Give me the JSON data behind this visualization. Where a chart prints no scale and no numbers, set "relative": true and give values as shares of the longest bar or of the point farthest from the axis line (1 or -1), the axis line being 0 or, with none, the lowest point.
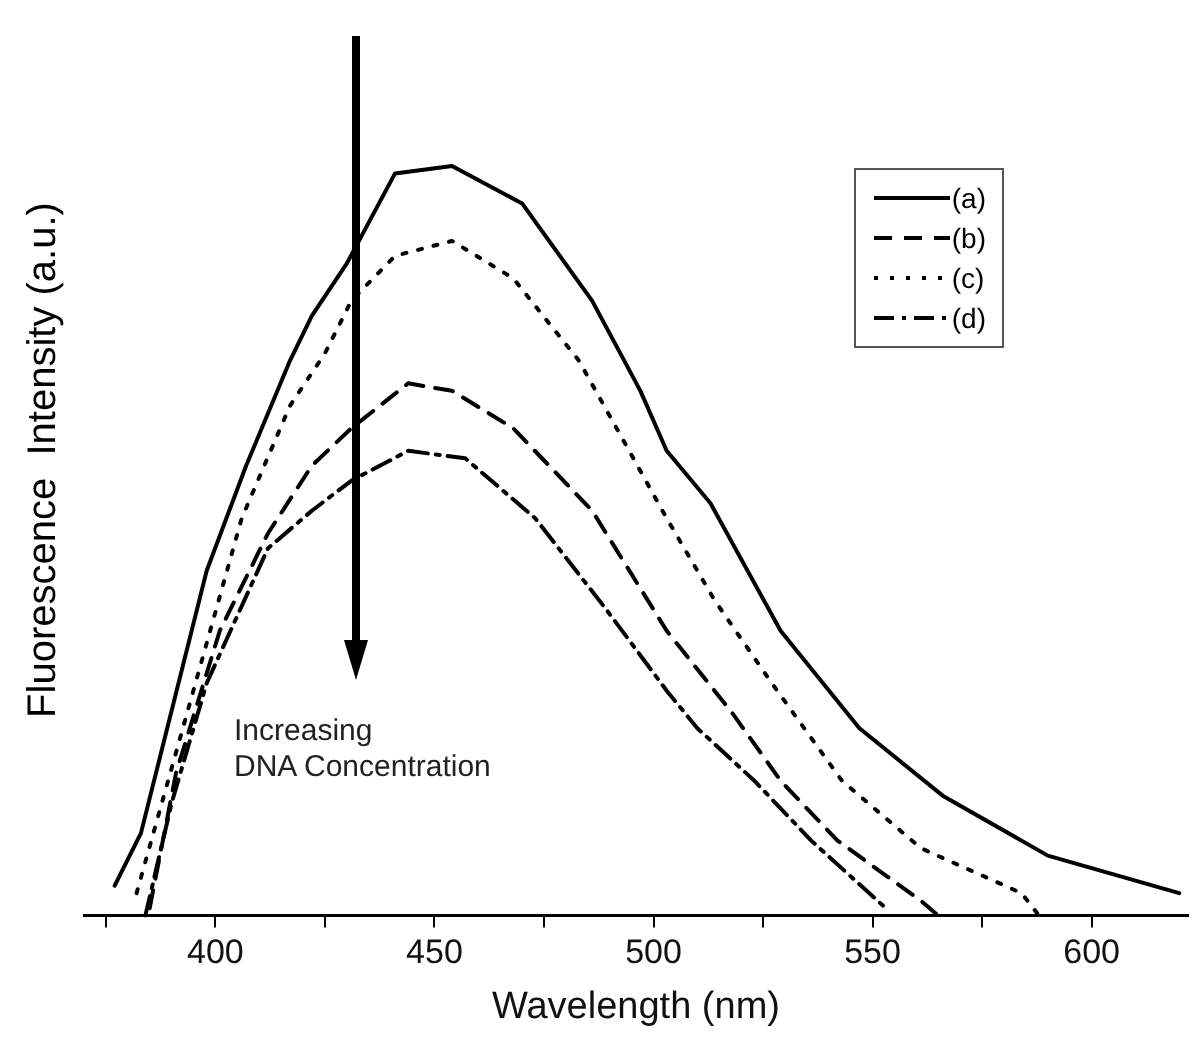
{
  "chart_data": {
    "type": "line",
    "relative": true,
    "xlabel": "Wavelength (nm)",
    "ylabel": "Fluorescence  Intensity (a.u.)",
    "xlim": [
      370,
      622
    ],
    "xticks": [
      {
        "value": 375,
        "label": null
      },
      400,
      {
        "value": 425,
        "label": null
      },
      450,
      {
        "value": 475,
        "label": null
      },
      500,
      {
        "value": 525,
        "label": null
      },
      550,
      {
        "value": 575,
        "label": null
      },
      600
    ],
    "legend": "top right",
    "grid": false,
    "marker": "none",
    "annotations": [
      "Increasing\nDNA Concentration"
    ],
    "series": [
      {
        "name": "(a)",
        "color": "#000000",
        "line_style": "solid",
        "x": [
          377,
          383,
          398,
          407,
          417,
          422,
          430,
          441,
          454,
          470,
          486,
          497,
          503,
          513,
          529,
          547,
          566,
          590,
          620
        ],
        "values": [
          0.04,
          0.11,
          0.46,
          0.6,
          0.74,
          0.8,
          0.87,
          0.99,
          1.0,
          0.95,
          0.82,
          0.7,
          0.62,
          0.55,
          0.38,
          0.25,
          0.16,
          0.08,
          0.03
        ]
      },
      {
        "name": "(b)",
        "color": "#000000",
        "line_style": "dashed",
        "x": [
          385,
          391,
          401,
          412,
          422,
          431,
          444,
          454,
          468,
          486,
          503,
          518,
          529,
          542,
          561,
          565
        ],
        "values": [
          0.01,
          0.19,
          0.38,
          0.51,
          0.6,
          0.65,
          0.71,
          0.7,
          0.65,
          0.54,
          0.38,
          0.27,
          0.18,
          0.1,
          0.02,
          0
        ]
      },
      {
        "name": "(c)",
        "color": "#000000",
        "line_style": "dotted",
        "x": [
          382,
          394,
          406,
          417,
          425,
          431,
          441,
          454,
          468,
          483,
          503,
          514,
          527,
          543,
          561,
          584,
          588
        ],
        "values": [
          0.03,
          0.28,
          0.53,
          0.68,
          0.75,
          0.82,
          0.88,
          0.9,
          0.85,
          0.74,
          0.53,
          0.42,
          0.31,
          0.18,
          0.09,
          0.03,
          0
        ]
      },
      {
        "name": "(d)",
        "color": "#000000",
        "line_style": "dashdot",
        "x": [
          384,
          390,
          398,
          412,
          422,
          431,
          444,
          457,
          473,
          489,
          503,
          510,
          523,
          536,
          553
        ],
        "values": [
          0,
          0.15,
          0.31,
          0.49,
          0.54,
          0.58,
          0.62,
          0.61,
          0.53,
          0.41,
          0.3,
          0.25,
          0.18,
          0.1,
          0.01
        ]
      }
    ]
  }
}
